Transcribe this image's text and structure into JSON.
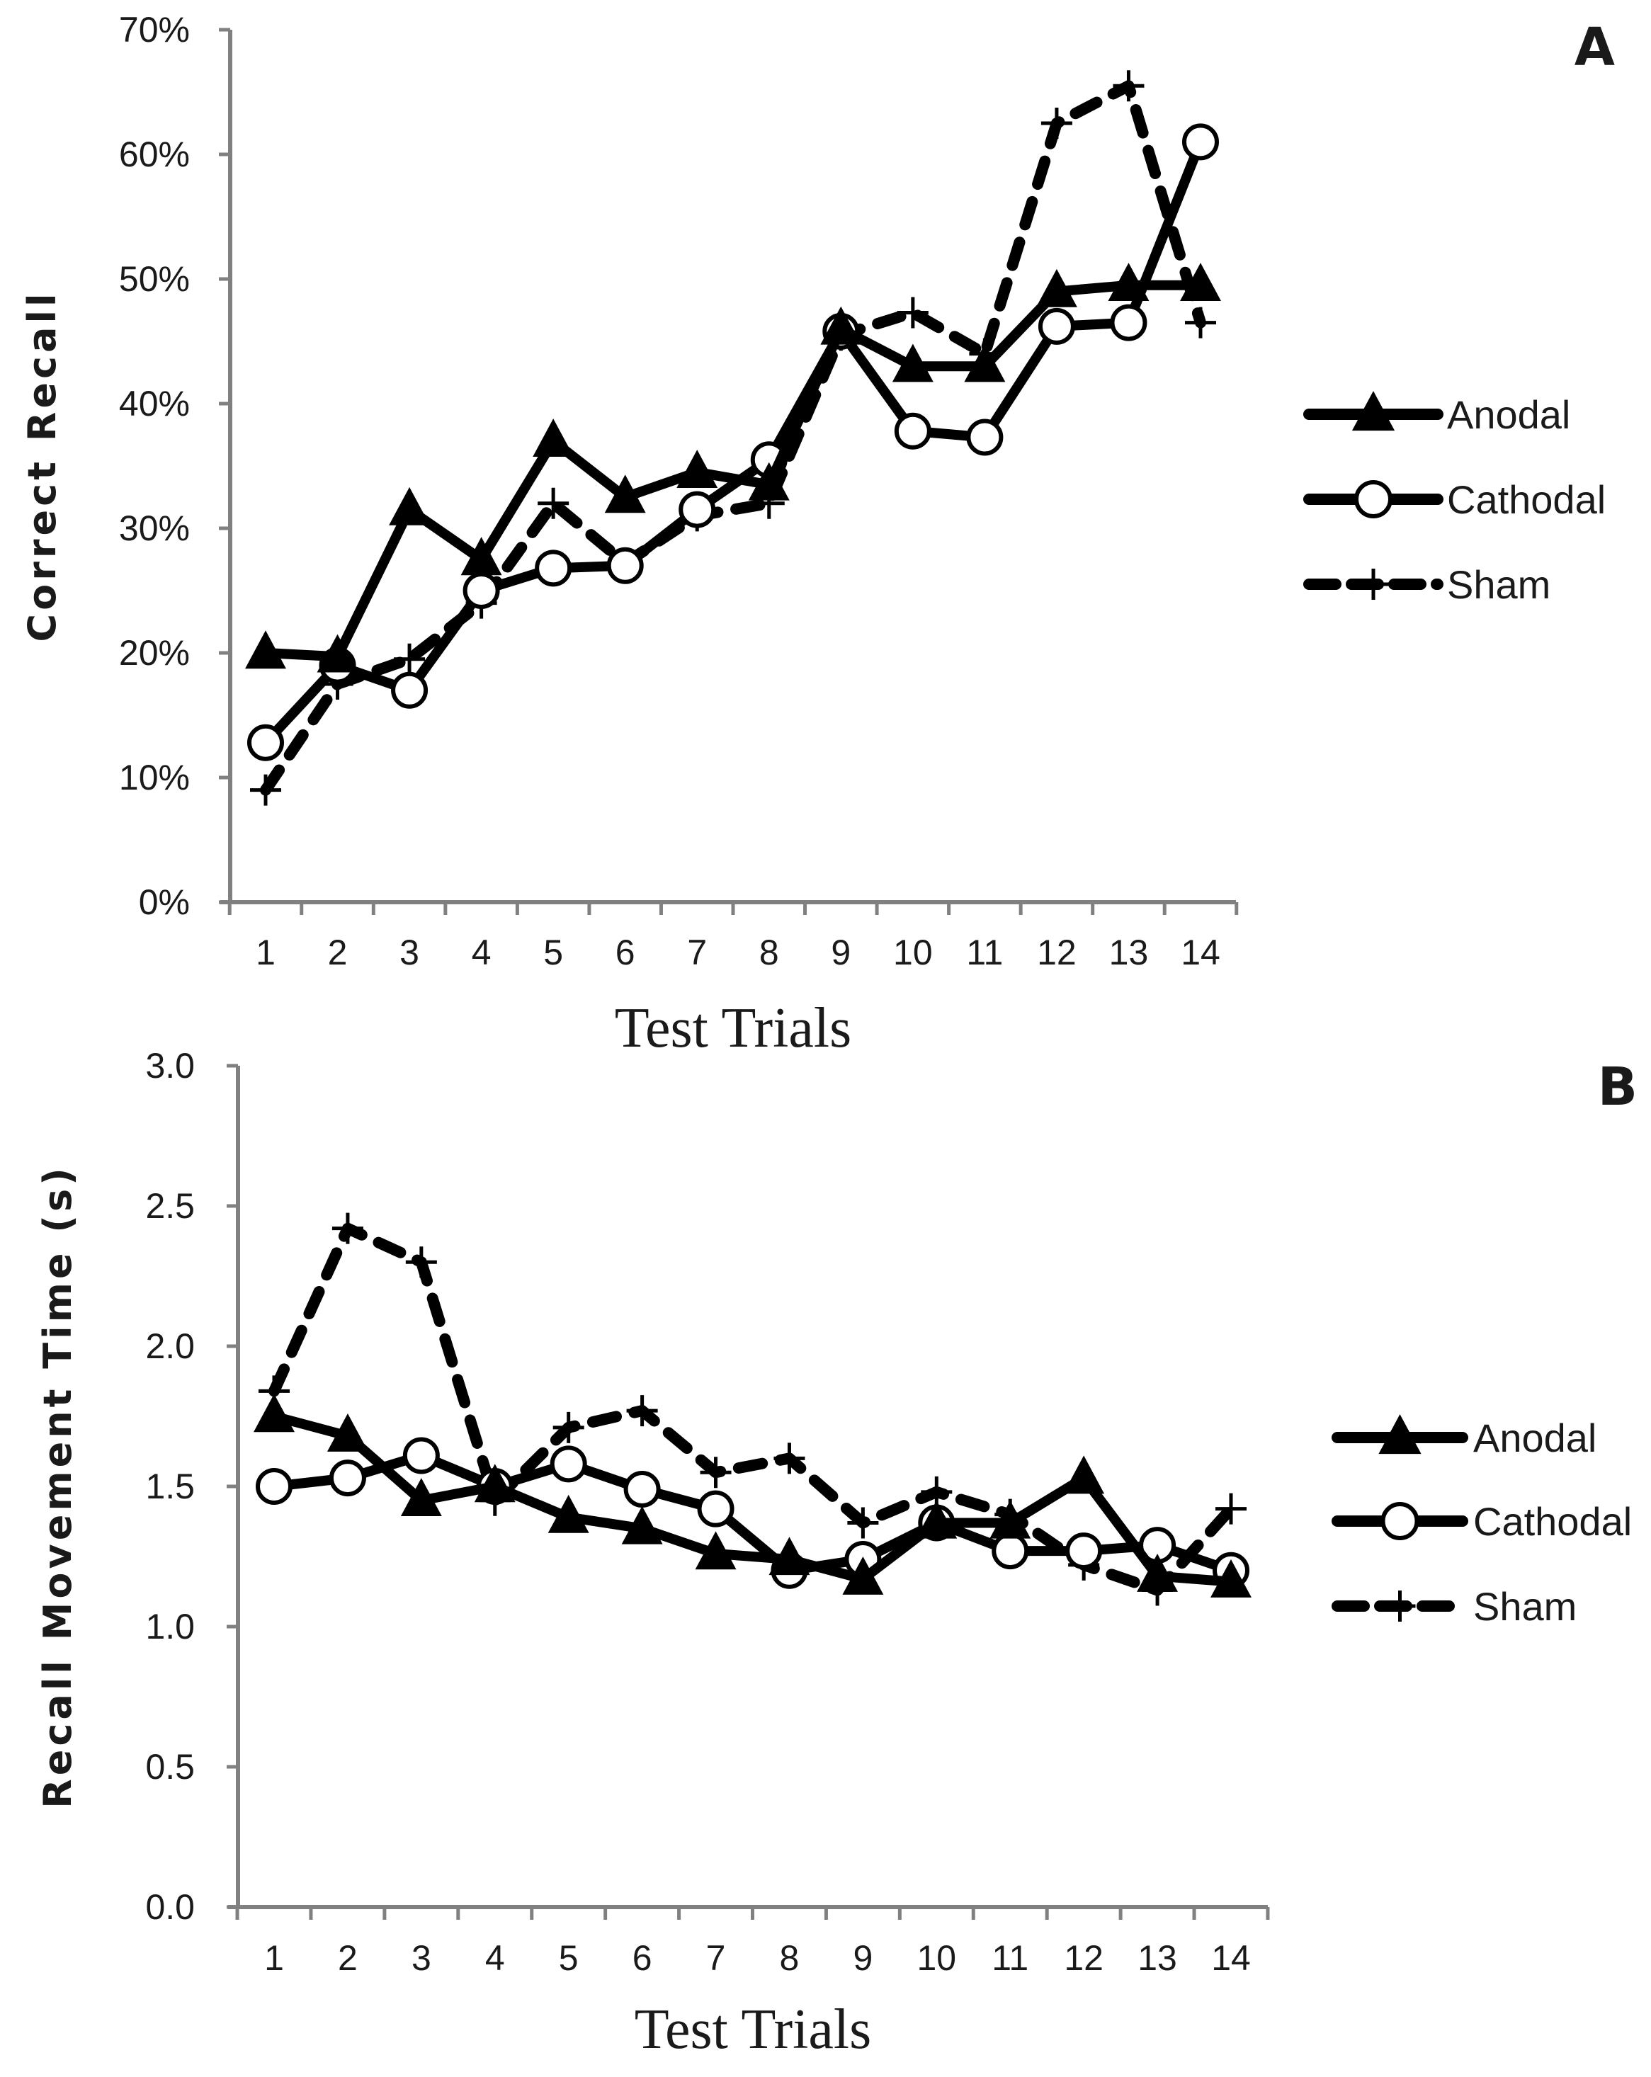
{
  "chart_data": [
    {
      "panel_label": "A",
      "type": "line",
      "xlabel": "Test Trials",
      "ylabel": "Correct Recall",
      "categories": [
        "1",
        "2",
        "3",
        "4",
        "5",
        "6",
        "7",
        "8",
        "9",
        "10",
        "11",
        "12",
        "13",
        "14"
      ],
      "ylim": [
        0,
        0.7
      ],
      "yticks": [
        0,
        0.1,
        0.2,
        0.3,
        0.4,
        0.5,
        0.6,
        0.7
      ],
      "ytick_labels": [
        "0%",
        "10%",
        "20%",
        "30%",
        "40%",
        "50%",
        "60%",
        "70%"
      ],
      "series": [
        {
          "name": "Anodal",
          "marker": "triangle",
          "style": "solid",
          "values": [
            0.2,
            0.197,
            0.315,
            0.275,
            0.37,
            0.325,
            0.345,
            0.335,
            0.46,
            0.43,
            0.43,
            0.49,
            0.495,
            0.495
          ]
        },
        {
          "name": "Cathodal",
          "marker": "circle",
          "style": "solid",
          "values": [
            0.128,
            0.19,
            0.17,
            0.25,
            0.268,
            0.27,
            0.315,
            0.355,
            0.458,
            0.378,
            0.373,
            0.462,
            0.465,
            0.61
          ]
        },
        {
          "name": "Sham",
          "marker": "plus",
          "style": "dashed",
          "values": [
            0.09,
            0.175,
            0.195,
            0.24,
            0.32,
            0.272,
            0.31,
            0.32,
            0.455,
            0.473,
            0.44,
            0.625,
            0.655,
            0.465
          ]
        }
      ],
      "legend": "right"
    },
    {
      "panel_label": "B",
      "type": "line",
      "xlabel": "Test Trials",
      "ylabel": "Recall Movement Time (s)",
      "categories": [
        "1",
        "2",
        "3",
        "4",
        "5",
        "6",
        "7",
        "8",
        "9",
        "10",
        "11",
        "12",
        "13",
        "14"
      ],
      "ylim": [
        0,
        3.0
      ],
      "yticks": [
        0,
        0.5,
        1.0,
        1.5,
        2.0,
        2.5,
        3.0
      ],
      "ytick_labels": [
        "0.0",
        "0.5",
        "1.0",
        "1.5",
        "2.0",
        "2.5",
        "3.0"
      ],
      "series": [
        {
          "name": "Anodal",
          "marker": "triangle",
          "style": "solid",
          "values": [
            1.75,
            1.68,
            1.45,
            1.5,
            1.39,
            1.35,
            1.26,
            1.24,
            1.17,
            1.37,
            1.37,
            1.53,
            1.18,
            1.16
          ]
        },
        {
          "name": "Cathodal",
          "marker": "circle",
          "style": "solid",
          "values": [
            1.5,
            1.53,
            1.61,
            1.5,
            1.58,
            1.49,
            1.42,
            1.2,
            1.24,
            1.37,
            1.27,
            1.27,
            1.29,
            1.2
          ]
        },
        {
          "name": "Sham",
          "marker": "plus",
          "style": "dashed",
          "values": [
            1.84,
            2.42,
            2.3,
            1.45,
            1.71,
            1.77,
            1.55,
            1.6,
            1.37,
            1.48,
            1.4,
            1.22,
            1.13,
            1.42
          ]
        }
      ],
      "legend": "right"
    }
  ]
}
